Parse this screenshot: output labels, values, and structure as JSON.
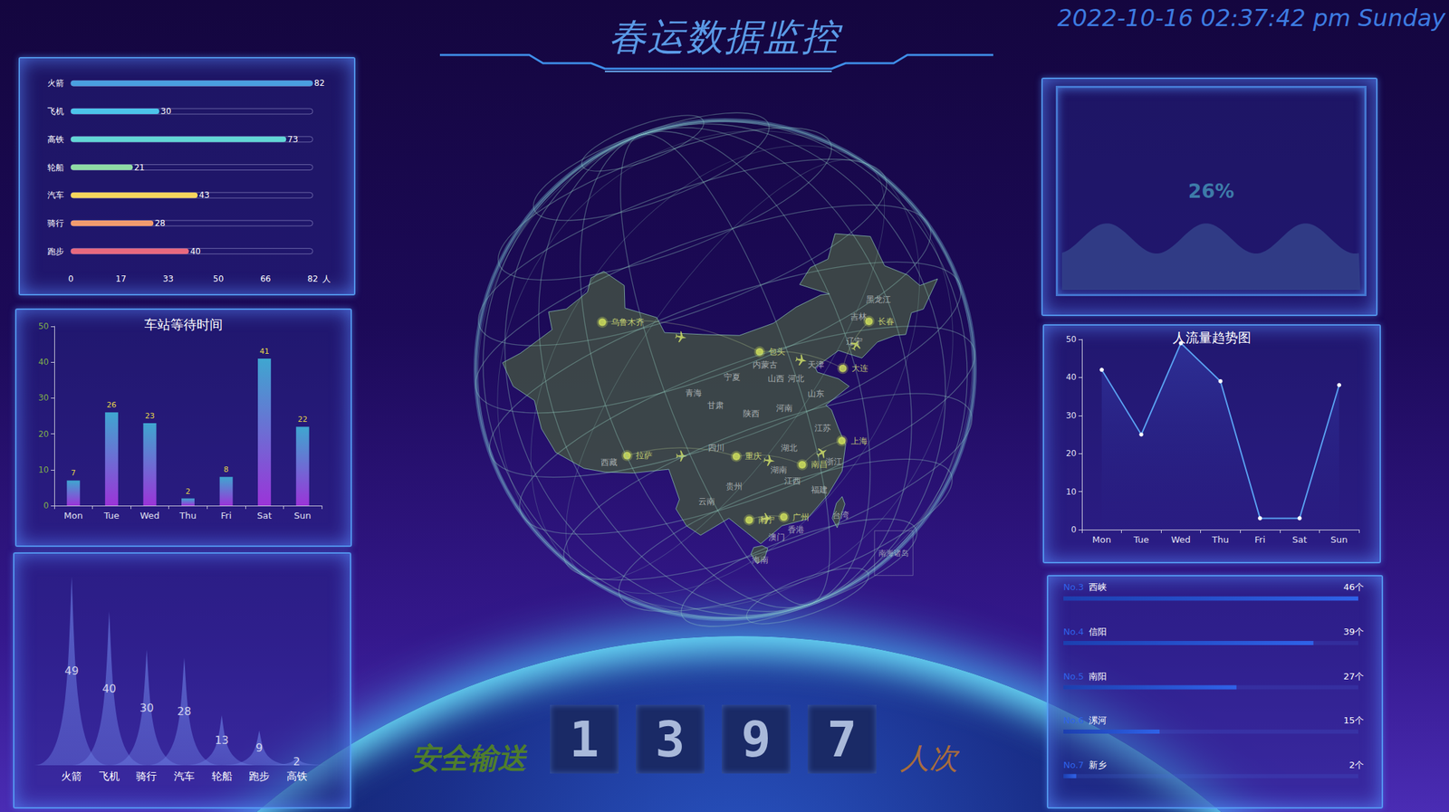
{
  "header": {
    "title": "春运数据监控",
    "datetime": "2022-10-16 02:37:42 pm Sunday"
  },
  "chart_data": [
    {
      "type": "bar",
      "orientation": "horizontal",
      "categories": [
        "火箭",
        "飞机",
        "高铁",
        "轮船",
        "汽车",
        "骑行",
        "跑步"
      ],
      "values": [
        82,
        30,
        73,
        21,
        43,
        28,
        40
      ],
      "colors": [
        "#4a9fe0",
        "#4cc4ea",
        "#62d6d6",
        "#8fdca4",
        "#f6d55c",
        "#f29b6e",
        "#e8697f"
      ],
      "xlim": [
        0,
        82
      ],
      "xticks": [
        0,
        17,
        33,
        50,
        66,
        82
      ],
      "xlabel": "人",
      "data_labels": true,
      "grid": false
    },
    {
      "type": "bar",
      "title": "车站等待时间",
      "categories": [
        "Mon",
        "Tue",
        "Wed",
        "Thu",
        "Fri",
        "Sat",
        "Sun"
      ],
      "values": [
        7,
        26,
        23,
        2,
        8,
        41,
        22
      ],
      "color": "#3fa6d0",
      "ylim": [
        0,
        50
      ],
      "yticks": [
        0,
        10,
        20,
        30,
        40,
        50
      ],
      "data_labels": true,
      "grid": false
    },
    {
      "type": "peak",
      "categories": [
        "火箭",
        "飞机",
        "骑行",
        "汽车",
        "轮船",
        "跑步",
        "高铁"
      ],
      "values": [
        49,
        40,
        30,
        28,
        13,
        9,
        2
      ],
      "color": "#6272d8",
      "ylim": [
        0,
        55
      ],
      "data_labels": true,
      "tick_labels": "x"
    },
    {
      "type": "liquid",
      "value": 26,
      "value_label": "26%",
      "color": "#323f88"
    },
    {
      "type": "line",
      "title": "人流量趋势图",
      "categories": [
        "Mon",
        "Tue",
        "Wed",
        "Thu",
        "Fri",
        "Sat",
        "Sun"
      ],
      "values": [
        42,
        25,
        49,
        39,
        3,
        3,
        38
      ],
      "color": "#5aa2f2",
      "marker": "circle",
      "line_style": "solid",
      "ylim": [
        0,
        50
      ],
      "yticks": [
        0,
        10,
        20,
        30,
        40,
        50
      ],
      "grid": false
    },
    {
      "type": "ranking",
      "ranks": [
        "No.3",
        "No.4",
        "No.5",
        "No.6",
        "No.7"
      ],
      "categories": [
        "西峡",
        "信阳",
        "南阳",
        "漯河",
        "新乡"
      ],
      "values": [
        46,
        39,
        27,
        15,
        2
      ],
      "value_labels": [
        "46个",
        "39个",
        "27个",
        "15个",
        "2个"
      ],
      "xlim": [
        0,
        46
      ],
      "color": "#2f62e8",
      "data_labels": true,
      "tick_labels": false
    }
  ],
  "counter": {
    "label": "安全输送",
    "value": 1397,
    "unit": "人次"
  },
  "map": {
    "type": "map",
    "xlim": [
      73,
      135
    ],
    "ylim": [
      18,
      53.5
    ],
    "tick_labels": false,
    "cities": [
      {
        "name": "乌鲁木齐",
        "lon": 87.6,
        "lat": 43.8
      },
      {
        "name": "拉萨",
        "lon": 91.1,
        "lat": 29.65
      },
      {
        "name": "重庆",
        "lon": 106.55,
        "lat": 29.56
      },
      {
        "name": "南宁",
        "lon": 108.37,
        "lat": 22.82
      },
      {
        "name": "广州",
        "lon": 113.26,
        "lat": 23.13
      },
      {
        "name": "上海",
        "lon": 121.47,
        "lat": 31.23
      },
      {
        "name": "大连",
        "lon": 121.6,
        "lat": 38.9
      },
      {
        "name": "长春",
        "lon": 125.3,
        "lat": 43.9
      },
      {
        "name": "包头",
        "lon": 109.84,
        "lat": 40.66
      },
      {
        "name": "南昌",
        "lon": 115.86,
        "lat": 28.68
      }
    ],
    "regions": [
      {
        "name": "黑龙江",
        "lon": 126.6,
        "lat": 46.2
      },
      {
        "name": "吉林",
        "lon": 123.8,
        "lat": 44.4
      },
      {
        "name": "辽宁",
        "lon": 123.2,
        "lat": 41.8
      },
      {
        "name": "内蒙古",
        "lon": 110.6,
        "lat": 39.3
      },
      {
        "name": "宁夏",
        "lon": 105.9,
        "lat": 38.0
      },
      {
        "name": "山西",
        "lon": 112.2,
        "lat": 37.8
      },
      {
        "name": "河北",
        "lon": 115.0,
        "lat": 37.8
      },
      {
        "name": "天津",
        "lon": 117.8,
        "lat": 39.3
      },
      {
        "name": "山东",
        "lon": 117.8,
        "lat": 36.2
      },
      {
        "name": "青海",
        "lon": 100.5,
        "lat": 36.3
      },
      {
        "name": "甘肃",
        "lon": 103.6,
        "lat": 35.0
      },
      {
        "name": "陕西",
        "lon": 108.7,
        "lat": 34.1
      },
      {
        "name": "河南",
        "lon": 113.3,
        "lat": 34.7
      },
      {
        "name": "四川",
        "lon": 103.7,
        "lat": 30.5
      },
      {
        "name": "湖北",
        "lon": 114.0,
        "lat": 30.5
      },
      {
        "name": "江苏",
        "lon": 118.8,
        "lat": 32.6
      },
      {
        "name": "浙江",
        "lon": 120.3,
        "lat": 29.0
      },
      {
        "name": "湖南",
        "lon": 112.6,
        "lat": 28.1
      },
      {
        "name": "江西",
        "lon": 114.5,
        "lat": 27.0
      },
      {
        "name": "贵州",
        "lon": 106.2,
        "lat": 26.4
      },
      {
        "name": "云南",
        "lon": 102.3,
        "lat": 24.8
      },
      {
        "name": "福建",
        "lon": 118.3,
        "lat": 26.0
      },
      {
        "name": "台湾",
        "lon": 121.3,
        "lat": 23.3
      },
      {
        "name": "澳门",
        "lon": 112.3,
        "lat": 21.0
      },
      {
        "name": "香港",
        "lon": 115.0,
        "lat": 21.8
      },
      {
        "name": "海南",
        "lon": 109.9,
        "lat": 18.6
      },
      {
        "name": "西藏",
        "lon": 88.5,
        "lat": 28.9
      }
    ],
    "inset": {
      "name": "南海诸岛",
      "lon": 128.8,
      "lat": 19.3
    },
    "routes": [
      [
        "乌鲁木齐",
        "包头"
      ],
      [
        "拉萨",
        "重庆"
      ],
      [
        "包头",
        "大连"
      ],
      [
        "重庆",
        "南昌"
      ],
      [
        "南宁",
        "广州"
      ],
      [
        "南昌",
        "上海"
      ],
      [
        "大连",
        "长春"
      ]
    ]
  }
}
